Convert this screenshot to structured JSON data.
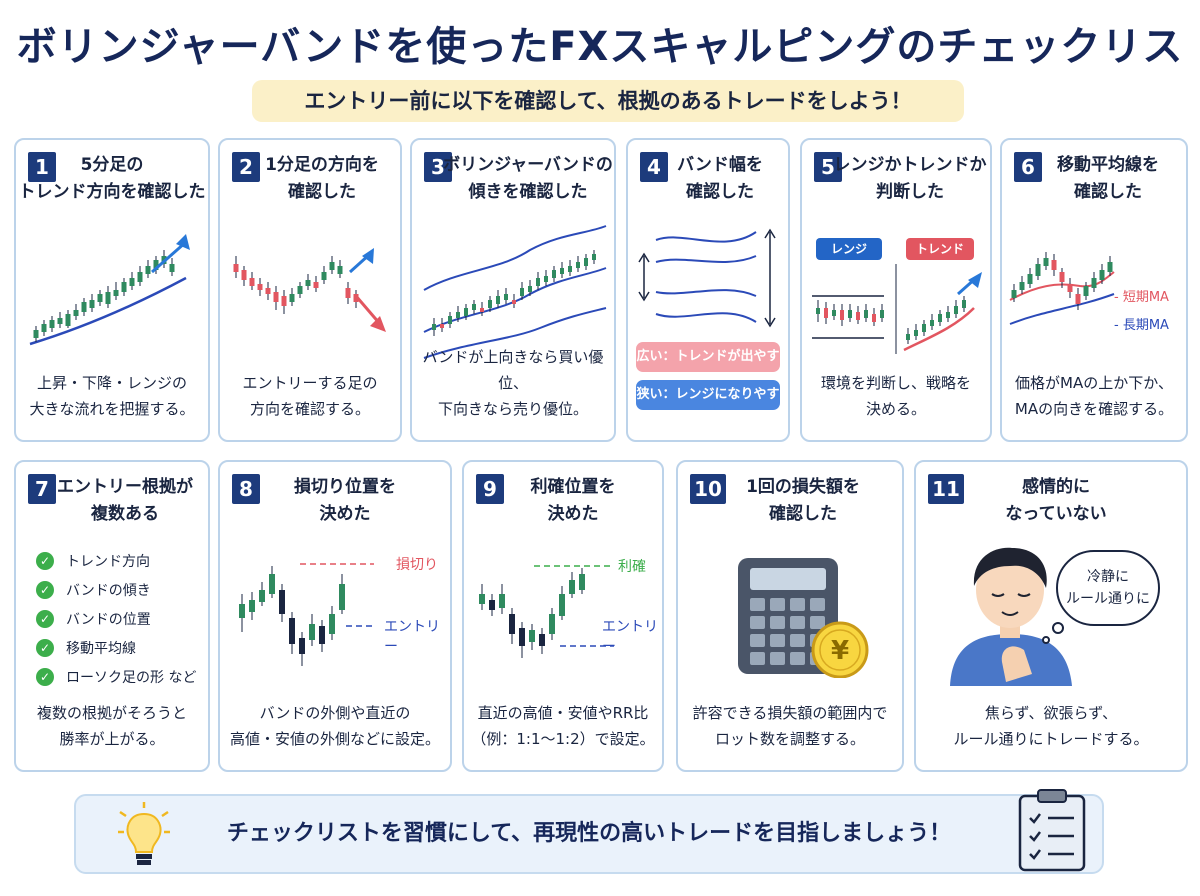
{
  "title": "ボリンジャーバンドを使ったFXスキャルピングのチェックリスト",
  "subtitle": "エントリー前に以下を確認して、根拠のあるトレードをしよう！",
  "cards": [
    {
      "num": "1",
      "title": [
        "5分足の",
        "トレンド方向を確認した"
      ],
      "desc": [
        "上昇・下降・レンジの",
        "大きな流れを把握する。"
      ]
    },
    {
      "num": "2",
      "title": [
        "1分足の方向を",
        "確認した"
      ],
      "desc": [
        "エントリーする足の",
        "方向を確認する。"
      ]
    },
    {
      "num": "3",
      "title": [
        "ボリンジャーバンドの",
        "傾きを確認した"
      ],
      "desc": [
        "バンドが上向きなら買い優位、",
        "下向きなら売り優位。"
      ]
    },
    {
      "num": "4",
      "title": [
        "バンド幅を",
        "確認した"
      ],
      "pills": [
        "広い：トレンドが出やすい",
        "狭い：レンジになりやすい"
      ]
    },
    {
      "num": "5",
      "title": [
        "レンジかトレンドか",
        "判断した"
      ],
      "tags": [
        "レンジ",
        "トレンド"
      ],
      "desc": [
        "環境を判断し、戦略を",
        "決める。"
      ]
    },
    {
      "num": "6",
      "title": [
        "移動平均線を",
        "確認した"
      ],
      "ma_labels": [
        "短期MA",
        "長期MA"
      ],
      "desc": [
        "価格がMAの上か下か、",
        "MAの向きを確認する。"
      ]
    },
    {
      "num": "7",
      "title": [
        "エントリー根拠が",
        "複数ある"
      ],
      "checklist": [
        "トレンド方向",
        "バンドの傾き",
        "バンドの位置",
        "移動平均線",
        "ローソク足の形  など"
      ],
      "desc": [
        "複数の根拠がそろうと",
        "勝率が上がる。"
      ]
    },
    {
      "num": "8",
      "title": [
        "損切り位置を",
        "決めた"
      ],
      "labels": [
        "損切り",
        "エントリー"
      ],
      "desc": [
        "バンドの外側や直近の",
        "高値・安値の外側などに設定。"
      ]
    },
    {
      "num": "9",
      "title": [
        "利確位置を",
        "決めた"
      ],
      "labels": [
        "利確",
        "エントリー"
      ],
      "desc": [
        "直近の高値・安値やRR比",
        "（例：1:1〜1:2）で設定。"
      ]
    },
    {
      "num": "10",
      "title": [
        "1回の損失額を",
        "確認した"
      ],
      "coin": "¥",
      "desc": [
        "許容できる損失額の範囲内で",
        "ロット数を調整する。"
      ]
    },
    {
      "num": "11",
      "title": [
        "感情的に",
        "なっていない"
      ],
      "bubble": [
        "冷静に",
        "ルール通りに"
      ],
      "desc": [
        "焦らず、欲張らず、",
        "ルール通りにトレードする。"
      ]
    }
  ],
  "footer": "チェックリストを習慣にして、再現性の高いトレードを目指しましょう！",
  "colors": {
    "navy": "#1d3b7c",
    "bull": "#2f8a5f",
    "bear": "#e25660",
    "band": "#2b4ab8",
    "green": "#3cae4b",
    "yellow": "#f8d640"
  }
}
